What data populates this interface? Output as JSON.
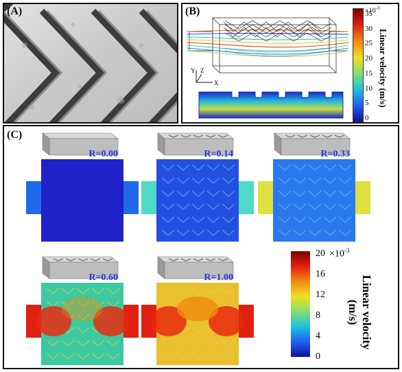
{
  "panels": {
    "A": {
      "label": "(A)"
    },
    "B": {
      "label": "(B)",
      "axes": {
        "y": "Y",
        "z": "Z",
        "x": "X"
      },
      "colorbar": {
        "exponent": "×10",
        "exponent_power": "-3",
        "ticks": [
          "35",
          "30",
          "25",
          "20",
          "15",
          "10",
          "5",
          "0"
        ],
        "title": "Linear velocity (m/s)"
      }
    },
    "C": {
      "label": "(C)",
      "subplots": [
        {
          "r_label": "R=0.00",
          "r": 0.0
        },
        {
          "r_label": "R=0.14",
          "r": 0.14
        },
        {
          "r_label": "R=0.33",
          "r": 0.33
        },
        {
          "r_label": "R=0.60",
          "r": 0.6
        },
        {
          "r_label": "R=1.00",
          "r": 1.0
        }
      ],
      "colorbar": {
        "max_label": "20",
        "exponent": "×10",
        "exponent_power": "-3",
        "ticks": [
          "20",
          "16",
          "12",
          "8",
          "4",
          "0"
        ],
        "title_line1": "Linear velocity",
        "title_line2": "(m/s)"
      }
    }
  },
  "colors": {
    "jet_low": "#1a1aa8",
    "jet_mid": "#3fd0d8",
    "jet_high": "#e02a10",
    "r_label_color": "#2a36d8"
  }
}
